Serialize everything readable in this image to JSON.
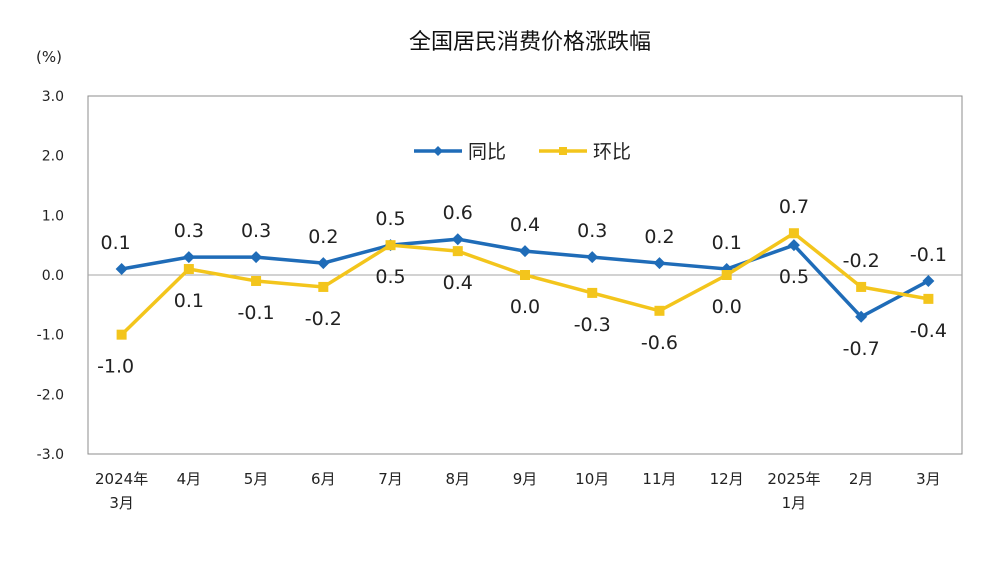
{
  "chart_data": {
    "type": "line",
    "title": "全国居民消费价格涨跌幅",
    "ylabel": "(%)",
    "xlabel": "",
    "ylim": [
      -3.0,
      3.0
    ],
    "yticks": [
      "3.0",
      "2.0",
      "1.0",
      "0.0",
      "-1.0",
      "-2.0",
      "-3.0"
    ],
    "grid": false,
    "legend_position": "top-center",
    "categories": [
      [
        "2024年",
        "3月"
      ],
      [
        "4月"
      ],
      [
        "5月"
      ],
      [
        "6月"
      ],
      [
        "7月"
      ],
      [
        "8月"
      ],
      [
        "9月"
      ],
      [
        "10月"
      ],
      [
        "11月"
      ],
      [
        "12月"
      ],
      [
        "2025年",
        "1月"
      ],
      [
        "2月"
      ],
      [
        "3月"
      ]
    ],
    "series": [
      {
        "name": "同比",
        "color": "#1f6cb8",
        "marker": "diamond",
        "values": [
          0.1,
          0.3,
          0.3,
          0.2,
          0.5,
          0.6,
          0.4,
          0.3,
          0.2,
          0.1,
          0.5,
          -0.7,
          -0.1
        ]
      },
      {
        "name": "环比",
        "color": "#f3c51c",
        "marker": "square",
        "values": [
          -1.0,
          0.1,
          -0.1,
          -0.2,
          0.5,
          0.4,
          0.0,
          -0.3,
          -0.6,
          0.0,
          0.7,
          -0.2,
          -0.4
        ]
      }
    ]
  }
}
